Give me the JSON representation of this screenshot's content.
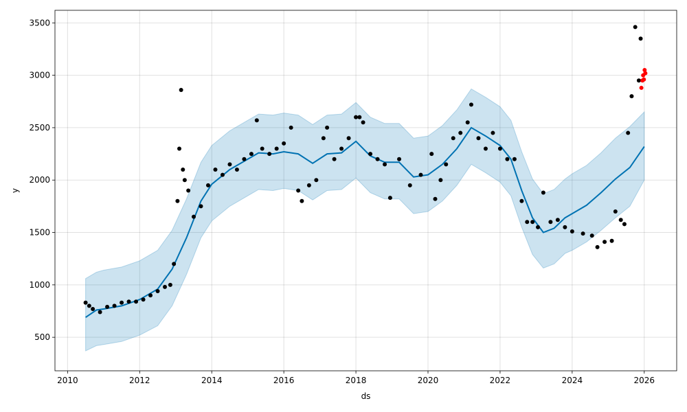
{
  "chart_data": {
    "type": "scatter",
    "title": "",
    "xlabel": "ds",
    "ylabel": "y",
    "xlim": [
      2009.65,
      2026.9
    ],
    "ylim": [
      180,
      3620
    ],
    "grid": true,
    "x_ticks": [
      2010,
      2012,
      2014,
      2016,
      2018,
      2020,
      2022,
      2024,
      2026
    ],
    "y_ticks": [
      500,
      1000,
      1500,
      2000,
      2500,
      3000,
      3500
    ],
    "colors": {
      "observed": "#000000",
      "actual_recent": "#ff0000",
      "forecast_line": "#0072b2",
      "uncertainty_band": "#0072b2"
    },
    "forecast": {
      "x": [
        2010.5,
        2010.8,
        2011.0,
        2011.5,
        2012.0,
        2012.5,
        2012.9,
        2013.3,
        2013.7,
        2014.0,
        2014.5,
        2015.0,
        2015.3,
        2015.7,
        2016.0,
        2016.4,
        2016.8,
        2017.2,
        2017.6,
        2018.0,
        2018.4,
        2018.8,
        2019.2,
        2019.6,
        2020.0,
        2020.4,
        2020.8,
        2021.2,
        2021.6,
        2022.0,
        2022.3,
        2022.6,
        2022.9,
        2023.2,
        2023.5,
        2023.8,
        2024.0,
        2024.4,
        2024.8,
        2025.2,
        2025.6,
        2026.0
      ],
      "y": [
        690,
        760,
        770,
        800,
        860,
        960,
        1150,
        1450,
        1800,
        1960,
        2100,
        2200,
        2260,
        2250,
        2270,
        2250,
        2160,
        2250,
        2260,
        2370,
        2230,
        2170,
        2170,
        2030,
        2050,
        2150,
        2300,
        2500,
        2420,
        2330,
        2200,
        1900,
        1640,
        1500,
        1540,
        1640,
        1680,
        1760,
        1880,
        2010,
        2120,
        2320
      ],
      "upper": [
        1060,
        1120,
        1140,
        1170,
        1230,
        1330,
        1520,
        1820,
        2170,
        2330,
        2470,
        2570,
        2630,
        2620,
        2640,
        2620,
        2530,
        2620,
        2630,
        2740,
        2600,
        2540,
        2540,
        2400,
        2420,
        2520,
        2670,
        2870,
        2790,
        2700,
        2570,
        2270,
        2010,
        1870,
        1910,
        2010,
        2060,
        2140,
        2260,
        2400,
        2510,
        2650
      ],
      "lower": [
        370,
        420,
        430,
        460,
        520,
        610,
        800,
        1100,
        1450,
        1610,
        1750,
        1850,
        1910,
        1900,
        1920,
        1900,
        1810,
        1900,
        1910,
        2020,
        1880,
        1820,
        1820,
        1680,
        1700,
        1800,
        1950,
        2150,
        2070,
        1980,
        1850,
        1550,
        1290,
        1160,
        1200,
        1300,
        1330,
        1410,
        1520,
        1640,
        1750,
        2000
      ]
    },
    "observed": {
      "x": [
        2010.5,
        2010.6,
        2010.7,
        2010.9,
        2011.1,
        2011.3,
        2011.5,
        2011.7,
        2011.9,
        2012.1,
        2012.3,
        2012.5,
        2012.7,
        2012.85,
        2012.95,
        2013.05,
        2013.1,
        2013.15,
        2013.2,
        2013.25,
        2013.35,
        2013.5,
        2013.7,
        2013.9,
        2014.1,
        2014.3,
        2014.5,
        2014.7,
        2014.9,
        2015.1,
        2015.25,
        2015.4,
        2015.6,
        2015.8,
        2016.0,
        2016.2,
        2016.4,
        2016.5,
        2016.7,
        2016.9,
        2017.1,
        2017.2,
        2017.4,
        2017.6,
        2017.8,
        2018.0,
        2018.1,
        2018.2,
        2018.4,
        2018.6,
        2018.8,
        2018.95,
        2019.2,
        2019.5,
        2019.8,
        2020.1,
        2020.2,
        2020.35,
        2020.5,
        2020.7,
        2020.9,
        2021.1,
        2021.2,
        2021.4,
        2021.6,
        2021.8,
        2022.0,
        2022.2,
        2022.4,
        2022.6,
        2022.75,
        2022.9,
        2023.05,
        2023.2,
        2023.4,
        2023.6,
        2023.8,
        2024.0,
        2024.3,
        2024.55,
        2024.7,
        2024.9,
        2025.1,
        2025.2,
        2025.35,
        2025.45,
        2025.55,
        2025.65,
        2025.75,
        2025.85,
        2025.9
      ],
      "y": [
        830,
        800,
        770,
        740,
        790,
        800,
        830,
        840,
        840,
        860,
        900,
        940,
        980,
        1000,
        1200,
        1800,
        2300,
        2860,
        2100,
        2000,
        1900,
        1650,
        1750,
        1950,
        2100,
        2050,
        2150,
        2100,
        2200,
        2250,
        2570,
        2300,
        2250,
        2300,
        2350,
        2500,
        1900,
        1800,
        1950,
        2000,
        2400,
        2500,
        2200,
        2300,
        2400,
        2600,
        2600,
        2550,
        2250,
        2200,
        2150,
        1830,
        2200,
        1950,
        2050,
        2250,
        1820,
        2000,
        2150,
        2400,
        2450,
        2550,
        2720,
        2400,
        2300,
        2450,
        2300,
        2200,
        2200,
        1800,
        1600,
        1600,
        1550,
        1880,
        1600,
        1620,
        1550,
        1510,
        1490,
        1470,
        1360,
        1410,
        1420,
        1700,
        1620,
        1580,
        2450,
        2800,
        3460,
        2950,
        3350
      ]
    },
    "actual_recent": {
      "x": [
        2025.92,
        2025.95,
        2025.97,
        2025.99,
        2026.01,
        2026.03
      ],
      "y": [
        2880,
        2950,
        3000,
        2960,
        3050,
        3020
      ]
    }
  }
}
